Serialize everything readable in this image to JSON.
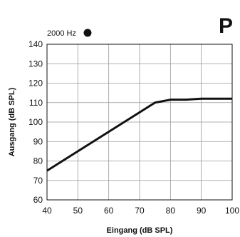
{
  "badge": "P",
  "chart_data": {
    "type": "line",
    "xlabel": "Eingang (dB SPL)",
    "ylabel": "Ausgang (dB SPL)",
    "xlim": [
      40,
      100
    ],
    "ylim": [
      60,
      140
    ],
    "xticks": [
      40,
      50,
      60,
      70,
      80,
      90,
      100
    ],
    "yticks": [
      60,
      70,
      80,
      90,
      100,
      110,
      120,
      130,
      140
    ],
    "grid": true,
    "legend": {
      "label": "2000 Hz",
      "placement": "top-left",
      "marker": "filled-circle"
    },
    "series": [
      {
        "name": "2000 Hz",
        "color": "#111111",
        "x": [
          40,
          75,
          80,
          85,
          90,
          100
        ],
        "y": [
          75,
          110,
          111.5,
          111.5,
          112,
          112
        ]
      }
    ]
  }
}
